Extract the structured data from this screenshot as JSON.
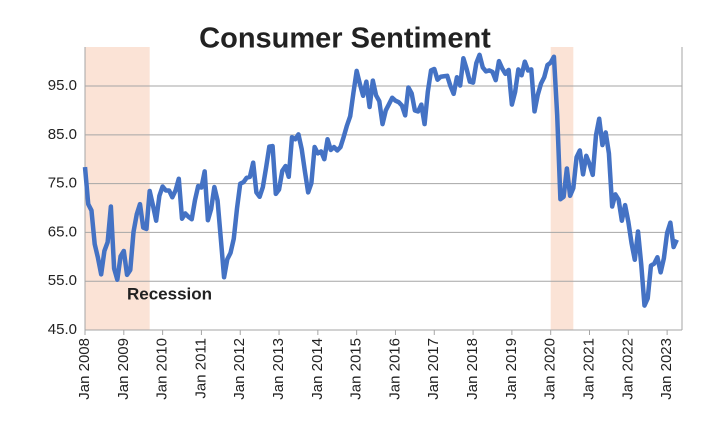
{
  "chart_data": {
    "type": "line",
    "title": "Consumer Sentiment",
    "annotation": "Recession",
    "categories": [
      "Jan 2008",
      null,
      null,
      null,
      null,
      null,
      null,
      null,
      null,
      null,
      null,
      null,
      "Jan 2009",
      null,
      null,
      null,
      null,
      null,
      null,
      null,
      null,
      null,
      null,
      null,
      "Jan 2010",
      null,
      null,
      null,
      null,
      null,
      null,
      null,
      null,
      null,
      null,
      null,
      "Jan 2011",
      null,
      null,
      null,
      null,
      null,
      null,
      null,
      null,
      null,
      null,
      null,
      "Jan 2012",
      null,
      null,
      null,
      null,
      null,
      null,
      null,
      null,
      null,
      null,
      null,
      "Jan 2013",
      null,
      null,
      null,
      null,
      null,
      null,
      null,
      null,
      null,
      null,
      null,
      "Jan 2014",
      null,
      null,
      null,
      null,
      null,
      null,
      null,
      null,
      null,
      null,
      null,
      "Jan 2015",
      null,
      null,
      null,
      null,
      null,
      null,
      null,
      null,
      null,
      null,
      null,
      "Jan 2016",
      null,
      null,
      null,
      null,
      null,
      null,
      null,
      null,
      null,
      null,
      null,
      "Jan 2017",
      null,
      null,
      null,
      null,
      null,
      null,
      null,
      null,
      null,
      null,
      null,
      "Jan 2018",
      null,
      null,
      null,
      null,
      null,
      null,
      null,
      null,
      null,
      null,
      null,
      "Jan 2019",
      null,
      null,
      null,
      null,
      null,
      null,
      null,
      null,
      null,
      null,
      null,
      "Jan 2020",
      null,
      null,
      null,
      null,
      null,
      null,
      null,
      null,
      null,
      null,
      null,
      "Jan 2021",
      null,
      null,
      null,
      null,
      null,
      null,
      null,
      null,
      null,
      null,
      null,
      "Jan 2022",
      null,
      null,
      null,
      null,
      null,
      null,
      null,
      null,
      null,
      null,
      null,
      "Jan 2023",
      null,
      null,
      null
    ],
    "series": [
      {
        "name": "Consumer Sentiment",
        "color": "#4472c4",
        "values": [
          78.4,
          70.8,
          69.5,
          62.6,
          59.8,
          56.4,
          61.2,
          63.0,
          70.3,
          57.6,
          55.3,
          60.1,
          61.2,
          56.3,
          57.3,
          65.1,
          68.7,
          70.8,
          66.0,
          65.7,
          73.5,
          70.6,
          67.4,
          72.5,
          74.4,
          73.6,
          73.6,
          72.2,
          73.6,
          76.0,
          67.8,
          68.9,
          68.2,
          67.7,
          71.6,
          74.5,
          74.2,
          77.5,
          67.5,
          69.8,
          74.3,
          71.5,
          63.7,
          55.8,
          59.5,
          60.8,
          63.7,
          69.9,
          75.0,
          75.3,
          76.2,
          76.4,
          79.3,
          73.2,
          72.3,
          74.3,
          78.3,
          82.6,
          82.7,
          72.9,
          73.8,
          77.6,
          78.6,
          76.4,
          84.5,
          84.1,
          85.1,
          82.1,
          77.5,
          73.2,
          75.1,
          82.5,
          81.2,
          81.6,
          80.0,
          84.1,
          81.9,
          82.5,
          81.8,
          82.5,
          84.6,
          86.9,
          88.8,
          93.6,
          98.1,
          95.4,
          93.0,
          95.9,
          90.7,
          96.1,
          93.1,
          91.9,
          87.2,
          90.0,
          91.3,
          92.6,
          92.0,
          91.7,
          91.0,
          89.0,
          94.7,
          93.5,
          90.0,
          89.8,
          91.2,
          87.2,
          93.8,
          98.2,
          98.5,
          96.3,
          96.9,
          97.0,
          97.1,
          95.0,
          93.4,
          96.8,
          95.1,
          100.7,
          98.5,
          95.9,
          95.7,
          99.7,
          101.4,
          98.8,
          98.0,
          98.2,
          97.9,
          96.2,
          100.1,
          98.6,
          97.5,
          98.3,
          91.2,
          93.8,
          98.4,
          97.2,
          100.0,
          98.2,
          98.4,
          89.8,
          93.2,
          95.5,
          96.8,
          99.3,
          99.8,
          101.0,
          89.1,
          71.8,
          72.3,
          78.1,
          72.5,
          74.1,
          80.4,
          81.8,
          76.9,
          80.7,
          79.0,
          76.8,
          84.9,
          88.3,
          82.9,
          85.5,
          81.2,
          70.3,
          72.8,
          71.7,
          67.4,
          70.6,
          67.2,
          62.8,
          59.4,
          65.2,
          58.4,
          50.0,
          51.5,
          58.2,
          58.6,
          59.9,
          56.8,
          59.7,
          64.9,
          67.0,
          62.0,
          63.5
        ]
      }
    ],
    "shaded_ranges": [
      [
        0,
        20
      ],
      [
        144,
        151
      ]
    ],
    "shade_color": "#fbe3d6",
    "ylim": [
      45,
      103
    ],
    "yticks": [
      {
        "value": 45,
        "label": "45.0"
      },
      {
        "value": 55,
        "label": "55.0"
      },
      {
        "value": 65,
        "label": "65.0"
      },
      {
        "value": 75,
        "label": "75.0"
      },
      {
        "value": 85,
        "label": "85.0"
      },
      {
        "value": 95,
        "label": "95.0"
      }
    ],
    "grid": true
  }
}
